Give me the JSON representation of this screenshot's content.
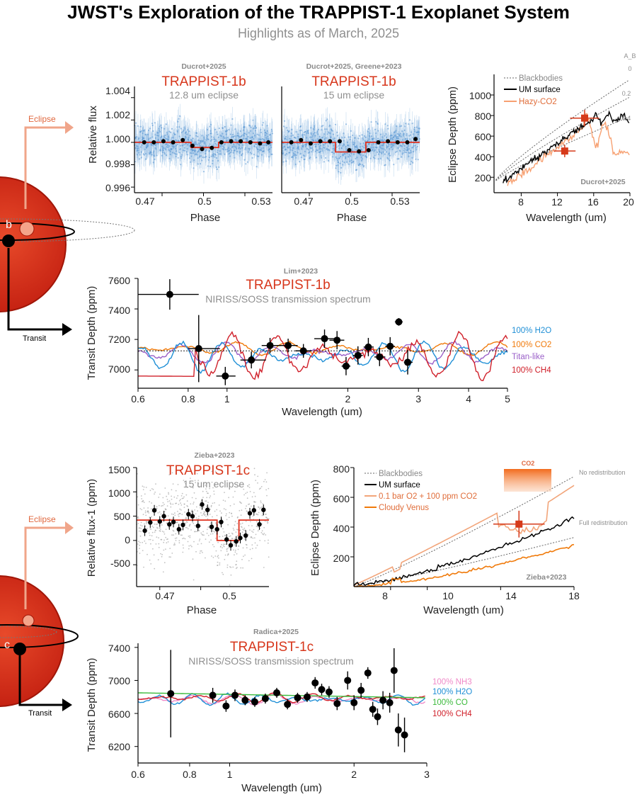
{
  "header": {
    "title": "JWST's Exploration of the TRAPPIST-1 Exoplanet System",
    "subtitle": "Highlights as of March, 2025"
  },
  "schematic": {
    "eclipse_label": "Eclipse",
    "transit_label": "Transit",
    "planet_b_letter": "b",
    "planet_c_letter": "c"
  },
  "chart_data": [
    {
      "id": "b_flux_12",
      "type": "scatter",
      "citation": "Ducrot+2025",
      "title": "TRAPPIST-1b",
      "subtitle": "12.8 um eclipse",
      "xlabel": "Phase",
      "ylabel": "Relative flux",
      "xlim": [
        0.45,
        0.55
      ],
      "ylim": [
        0.9955,
        1.005
      ],
      "xticks": [
        "0.47",
        "0.5",
        "0.53"
      ],
      "yticks": [
        "0.996",
        "0.998",
        "1.000",
        "1.002",
        "1.004"
      ],
      "binned_x": [
        0.457,
        0.464,
        0.471,
        0.478,
        0.485,
        0.492,
        0.499,
        0.506,
        0.513,
        0.52,
        0.527,
        0.534,
        0.541,
        0.547
      ],
      "binned_y": [
        1.0,
        1.0,
        1.0001,
        1.0,
        1.0002,
        0.9997,
        0.9994,
        0.9995,
        1.0,
        1.0001,
        1.0001,
        1.0,
        0.9999,
        1.0
      ],
      "model": {
        "ingress": 0.491,
        "egress": 0.511,
        "depth": 0.00046
      }
    },
    {
      "id": "b_flux_15",
      "type": "scatter",
      "citation": "Ducrot+2025, Greene+2023",
      "title": "TRAPPIST-1b",
      "subtitle": "15 um eclipse",
      "xlabel": "Phase",
      "xlim": [
        0.45,
        0.55
      ],
      "ylim": [
        0.9955,
        1.005
      ],
      "xticks": [
        "0.47",
        "0.5",
        "0.53"
      ],
      "binned_x": [
        0.457,
        0.464,
        0.471,
        0.478,
        0.485,
        0.492,
        0.499,
        0.506,
        0.513,
        0.52,
        0.527,
        0.534,
        0.541,
        0.547
      ],
      "binned_y": [
        1.0,
        1.0002,
        0.9999,
        1.0001,
        1.0001,
        1.0001,
        0.9993,
        0.9992,
        0.9993,
        1.0,
        1.0001,
        1.0,
        1.0,
        1.0003
      ],
      "model": {
        "ingress": 0.489,
        "egress": 0.511,
        "depth": 0.00086
      }
    },
    {
      "id": "b_eclipse_spec",
      "type": "line",
      "citation": "Ducrot+2025",
      "xlabel": "Wavelength (um)",
      "ylabel": "Eclipse Depth (ppm)",
      "xlim": [
        5,
        20
      ],
      "ylim": [
        50,
        1200
      ],
      "xticks": [
        "8",
        "12",
        "16",
        "20"
      ],
      "yticks": [
        "200",
        "400",
        "600",
        "800",
        "1000"
      ],
      "legend": [
        "Blackbodies",
        "UM surface",
        "Hazy-CO2"
      ],
      "albedo_header": "A_B",
      "albedo_labels": [
        "0",
        "0.2",
        "0.4"
      ],
      "points": [
        {
          "x": 12.8,
          "y": 455,
          "xerr": 1.2,
          "yerr": 60
        },
        {
          "x": 15.0,
          "y": 775,
          "xerr": 1.6,
          "yerr": 80
        }
      ],
      "colors": {
        "um": "#000000",
        "hazy": "#f7a071",
        "points": "#d63a1a"
      }
    },
    {
      "id": "b_transit",
      "type": "line",
      "citation": "Lim+2023",
      "title": "TRAPPIST-1b",
      "subtitle": "NIRISS/SOSS transmission spectrum",
      "xlabel": "Wavelength (um)",
      "ylabel": "Transit Depth (ppm)",
      "xscale": "log",
      "xlim": [
        0.6,
        5
      ],
      "ylim": [
        6880,
        7600
      ],
      "xticks": [
        "0.6",
        "0.8",
        "1",
        "2",
        "3",
        "4",
        "5"
      ],
      "yticks": [
        "7000",
        "7200",
        "7400",
        "7600"
      ],
      "flat_level": 7125,
      "legend": [
        {
          "label": "100% H2O",
          "color": "#1f8fd6"
        },
        {
          "label": "100% CO2",
          "color": "#f07a0a"
        },
        {
          "label": "Titan-like",
          "color": "#9a5fc8"
        },
        {
          "label": "100% CH4",
          "color": "#d0202a"
        }
      ],
      "points": [
        {
          "x": 0.72,
          "y": 7495,
          "xl": 0.6,
          "xh": 0.85,
          "yerr": 100
        },
        {
          "x": 0.85,
          "y": 7140,
          "xl": 0.8,
          "xh": 0.96,
          "yerr": 220
        },
        {
          "x": 0.99,
          "y": 6960,
          "xl": 0.94,
          "xh": 1.05,
          "yerr": 60
        },
        {
          "x": 1.15,
          "y": 7065,
          "xl": 1.08,
          "xh": 1.25,
          "yerr": 55
        },
        {
          "x": 1.28,
          "y": 7160,
          "xl": 1.22,
          "xh": 1.36,
          "yerr": 50
        },
        {
          "x": 1.42,
          "y": 7160,
          "xl": 1.35,
          "xh": 1.5,
          "yerr": 45
        },
        {
          "x": 1.55,
          "y": 7125,
          "xl": 1.48,
          "xh": 1.62,
          "yerr": 45
        },
        {
          "x": 1.75,
          "y": 7205,
          "xl": 1.65,
          "xh": 1.85,
          "yerr": 60
        },
        {
          "x": 1.88,
          "y": 7195,
          "xl": 1.8,
          "xh": 1.96,
          "yerr": 60
        },
        {
          "x": 1.98,
          "y": 7025,
          "xl": 1.93,
          "xh": 2.03,
          "yerr": 60
        },
        {
          "x": 2.12,
          "y": 7095,
          "xl": 2.06,
          "xh": 2.18,
          "yerr": 60
        },
        {
          "x": 2.25,
          "y": 7150,
          "xl": 2.19,
          "xh": 2.32,
          "yerr": 60
        },
        {
          "x": 2.4,
          "y": 7085,
          "xl": 2.33,
          "xh": 2.48,
          "yerr": 60
        },
        {
          "x": 2.55,
          "y": 7155,
          "xl": 2.48,
          "xh": 2.62,
          "yerr": 60
        },
        {
          "x": 2.68,
          "y": 7315,
          "xl": 2.62,
          "xh": 2.74,
          "yerr": 25
        },
        {
          "x": 2.82,
          "y": 7050,
          "xl": 2.76,
          "xh": 2.9,
          "yerr": 80
        }
      ]
    },
    {
      "id": "c_flux_15",
      "type": "scatter",
      "citation": "Zieba+2023",
      "title": "TRAPPIST-1c",
      "subtitle": "15 um eclipse",
      "xlabel": "Phase",
      "ylabel": "Relative flux-1 (ppm)",
      "xlim": [
        0.453,
        0.55
      ],
      "ylim": [
        -950,
        1500
      ],
      "xticks": [
        "0.47",
        "0.5"
      ],
      "yticks": [
        "-500",
        "0",
        "500",
        "1000",
        "1500"
      ],
      "binned_x": [
        0.459,
        0.463,
        0.466,
        0.47,
        0.473,
        0.477,
        0.48,
        0.484,
        0.487,
        0.491,
        0.494,
        0.498,
        0.501,
        0.505,
        0.508,
        0.512,
        0.515,
        0.519,
        0.522,
        0.526,
        0.529,
        0.533,
        0.536,
        0.539,
        0.543,
        0.546
      ],
      "binned_y": [
        200,
        370,
        620,
        390,
        500,
        330,
        380,
        230,
        320,
        540,
        500,
        300,
        740,
        630,
        280,
        230,
        380,
        20,
        -100,
        -20,
        50,
        100,
        560,
        620,
        330,
        630
      ],
      "model": {
        "ingress": 0.512,
        "egress": 0.528,
        "depth": 420,
        "base": 420
      }
    },
    {
      "id": "c_eclipse_spec",
      "type": "line",
      "citation": "Zieba+2023",
      "xlabel": "Wavelength (um)",
      "ylabel": "Eclipse Depth (ppm)",
      "xlim": [
        6,
        18
      ],
      "ylim": [
        0,
        800
      ],
      "xticks": [
        "8",
        "10",
        "14",
        "18"
      ],
      "yticks": [
        "200",
        "400",
        "600",
        "800"
      ],
      "legend": [
        "Blackbodies",
        "UM surface",
        "0.1 bar O2 + 100 ppm CO2",
        "Cloudy Venus"
      ],
      "annotations": [
        "No redistribution",
        "Full redistribution",
        "CO2"
      ],
      "points": [
        {
          "x": 15.0,
          "y": 420,
          "xerr": 1.4,
          "yerr": 90
        }
      ],
      "colors": {
        "um": "#000000",
        "o2": "#f2a57a",
        "venus": "#f07a0a",
        "points": "#d63a1a"
      }
    },
    {
      "id": "c_transit",
      "type": "line",
      "citation": "Radica+2025",
      "title": "TRAPPIST-1c",
      "subtitle": "NIRISS/SOSS transmission spectrum",
      "xlabel": "Wavelength (um)",
      "ylabel": "Transit Depth (ppm)",
      "xscale": "log",
      "xlim": [
        0.6,
        3
      ],
      "ylim": [
        6000,
        7450
      ],
      "xticks": [
        "0.6",
        "0.8",
        "1",
        "2",
        "3"
      ],
      "yticks": [
        "6200",
        "6600",
        "7000",
        "7400"
      ],
      "legend": [
        {
          "label": "100% NH3",
          "color": "#f08ac8"
        },
        {
          "label": "100% H2O",
          "color": "#1f8fd6"
        },
        {
          "label": "100% CO",
          "color": "#3cba3c"
        },
        {
          "label": "100% CH4",
          "color": "#d0202a"
        }
      ],
      "points": [
        {
          "x": 0.72,
          "y": 6840,
          "yerr": 530
        },
        {
          "x": 0.91,
          "y": 6820,
          "yerr": 90
        },
        {
          "x": 0.98,
          "y": 6690,
          "yerr": 70
        },
        {
          "x": 1.03,
          "y": 6820,
          "yerr": 70
        },
        {
          "x": 1.09,
          "y": 6760,
          "yerr": 60
        },
        {
          "x": 1.15,
          "y": 6740,
          "yerr": 60
        },
        {
          "x": 1.22,
          "y": 6780,
          "yerr": 60
        },
        {
          "x": 1.3,
          "y": 6850,
          "yerr": 60
        },
        {
          "x": 1.38,
          "y": 6710,
          "yerr": 60
        },
        {
          "x": 1.46,
          "y": 6790,
          "yerr": 60
        },
        {
          "x": 1.54,
          "y": 6800,
          "yerr": 60
        },
        {
          "x": 1.61,
          "y": 6970,
          "yerr": 70
        },
        {
          "x": 1.67,
          "y": 6890,
          "yerr": 70
        },
        {
          "x": 1.74,
          "y": 6860,
          "yerr": 70
        },
        {
          "x": 1.82,
          "y": 6720,
          "yerr": 80
        },
        {
          "x": 1.93,
          "y": 7000,
          "yerr": 110
        },
        {
          "x": 2.0,
          "y": 6730,
          "yerr": 90
        },
        {
          "x": 2.08,
          "y": 6880,
          "yerr": 90
        },
        {
          "x": 2.16,
          "y": 7090,
          "yerr": 70
        },
        {
          "x": 2.22,
          "y": 6650,
          "yerr": 90
        },
        {
          "x": 2.28,
          "y": 6560,
          "yerr": 100
        },
        {
          "x": 2.35,
          "y": 6760,
          "yerr": 110
        },
        {
          "x": 2.44,
          "y": 6730,
          "yerr": 120
        },
        {
          "x": 2.5,
          "y": 7120,
          "yerr": 270
        },
        {
          "x": 2.56,
          "y": 6400,
          "yerr": 200
        },
        {
          "x": 2.65,
          "y": 6340,
          "yerr": 210
        }
      ]
    }
  ]
}
